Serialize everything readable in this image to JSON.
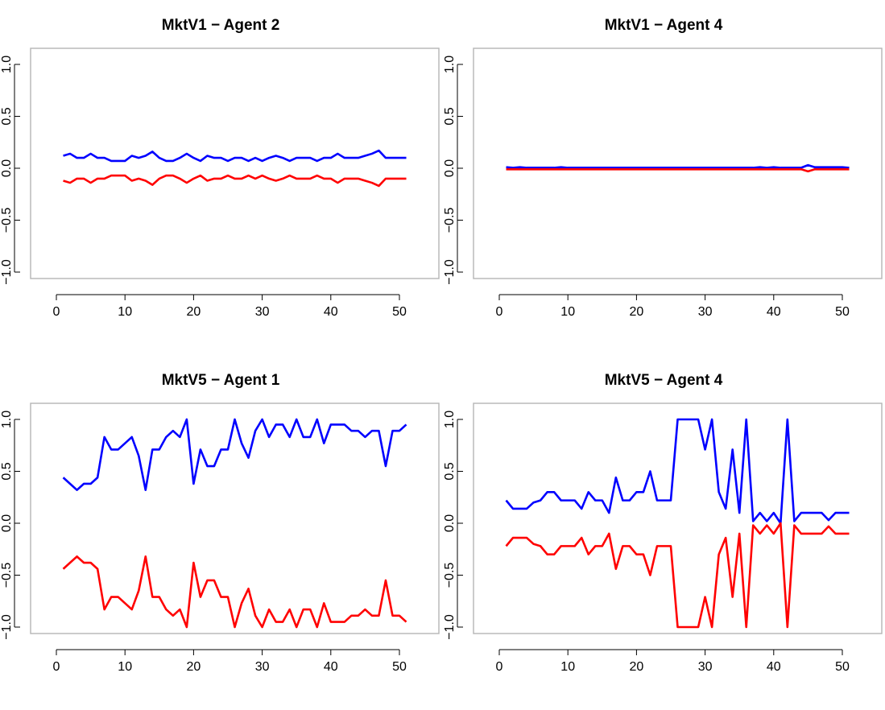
{
  "chart_data": [
    {
      "type": "line",
      "title": "MktV1 − Agent 2",
      "xlim": [
        1,
        51
      ],
      "ylim": [
        -1,
        1
      ],
      "xticks": [
        "0",
        "10",
        "20",
        "30",
        "40",
        "50"
      ],
      "yticks": [
        "−1.0",
        "−0.5",
        "0.0",
        "0.5",
        "1.0"
      ],
      "colors": {
        "positive": "#0000ff",
        "negative": "#ff0000"
      },
      "series": [
        {
          "color": "#0000ff",
          "values": [
            0.12,
            0.14,
            0.1,
            0.1,
            0.14,
            0.1,
            0.1,
            0.07,
            0.07,
            0.07,
            0.12,
            0.1,
            0.12,
            0.16,
            0.1,
            0.07,
            0.07,
            0.1,
            0.14,
            0.1,
            0.07,
            0.12,
            0.1,
            0.1,
            0.07,
            0.1,
            0.1,
            0.07,
            0.1,
            0.07,
            0.1,
            0.12,
            0.1,
            0.07,
            0.1,
            0.1,
            0.1,
            0.07,
            0.1,
            0.1,
            0.14,
            0.1,
            0.1,
            0.1,
            0.12,
            0.14,
            0.17,
            0.1,
            0.1,
            0.1,
            0.1
          ]
        },
        {
          "color": "#ff0000",
          "values": [
            -0.12,
            -0.14,
            -0.1,
            -0.1,
            -0.14,
            -0.1,
            -0.1,
            -0.07,
            -0.07,
            -0.07,
            -0.12,
            -0.1,
            -0.12,
            -0.16,
            -0.1,
            -0.07,
            -0.07,
            -0.1,
            -0.14,
            -0.1,
            -0.07,
            -0.12,
            -0.1,
            -0.1,
            -0.07,
            -0.1,
            -0.1,
            -0.07,
            -0.1,
            -0.07,
            -0.1,
            -0.12,
            -0.1,
            -0.07,
            -0.1,
            -0.1,
            -0.1,
            -0.07,
            -0.1,
            -0.1,
            -0.14,
            -0.1,
            -0.1,
            -0.1,
            -0.12,
            -0.14,
            -0.17,
            -0.1,
            -0.1,
            -0.1,
            -0.1
          ]
        }
      ]
    },
    {
      "type": "line",
      "title": "MktV1 − Agent 4",
      "xlim": [
        1,
        51
      ],
      "ylim": [
        -1,
        1
      ],
      "xticks": [
        "0",
        "10",
        "20",
        "30",
        "40",
        "50"
      ],
      "yticks": [
        "−1.0",
        "−0.5",
        "0.0",
        "0.5",
        "1.0"
      ],
      "colors": {
        "positive": "#0000ff",
        "negative": "#ff0000"
      },
      "series": [
        {
          "color": "#0000ff",
          "values": [
            0.01,
            0.005,
            0.01,
            0.005,
            0.005,
            0.005,
            0.005,
            0.005,
            0.01,
            0.005,
            0.005,
            0.005,
            0.005,
            0.005,
            0.005,
            0.005,
            0.005,
            0.005,
            0.005,
            0.005,
            0.005,
            0.005,
            0.005,
            0.005,
            0.005,
            0.005,
            0.005,
            0.005,
            0.005,
            0.005,
            0.005,
            0.005,
            0.005,
            0.005,
            0.005,
            0.005,
            0.005,
            0.01,
            0.005,
            0.01,
            0.005,
            0.005,
            0.005,
            0.005,
            0.03,
            0.01,
            0.01,
            0.01,
            0.01,
            0.01,
            0.005
          ]
        },
        {
          "color": "#ff0000",
          "values": [
            -0.01,
            -0.01,
            -0.01,
            -0.01,
            -0.01,
            -0.01,
            -0.01,
            -0.01,
            -0.01,
            -0.01,
            -0.01,
            -0.01,
            -0.01,
            -0.01,
            -0.01,
            -0.01,
            -0.01,
            -0.01,
            -0.01,
            -0.01,
            -0.01,
            -0.01,
            -0.01,
            -0.01,
            -0.01,
            -0.01,
            -0.01,
            -0.01,
            -0.01,
            -0.01,
            -0.01,
            -0.01,
            -0.01,
            -0.01,
            -0.01,
            -0.01,
            -0.01,
            -0.01,
            -0.01,
            -0.01,
            -0.01,
            -0.01,
            -0.01,
            -0.01,
            -0.03,
            -0.01,
            -0.01,
            -0.01,
            -0.01,
            -0.01,
            -0.01
          ]
        }
      ]
    },
    {
      "type": "line",
      "title": "MktV5 − Agent 1",
      "xlim": [
        1,
        51
      ],
      "ylim": [
        -1,
        1
      ],
      "xticks": [
        "0",
        "10",
        "20",
        "30",
        "40",
        "50"
      ],
      "yticks": [
        "−1.0",
        "−0.5",
        "0.0",
        "0.5",
        "1.0"
      ],
      "colors": {
        "positive": "#0000ff",
        "negative": "#ff0000"
      },
      "series": [
        {
          "color": "#0000ff",
          "values": [
            0.44,
            0.38,
            0.32,
            0.38,
            0.38,
            0.44,
            0.83,
            0.71,
            0.71,
            0.77,
            0.83,
            0.65,
            0.32,
            0.71,
            0.71,
            0.83,
            0.89,
            0.83,
            1.0,
            0.38,
            0.71,
            0.55,
            0.55,
            0.71,
            0.71,
            1.0,
            0.77,
            0.63,
            0.89,
            1.0,
            0.83,
            0.95,
            0.95,
            0.83,
            1.0,
            0.83,
            0.83,
            1.0,
            0.77,
            0.95,
            0.95,
            0.95,
            0.89,
            0.89,
            0.83,
            0.89,
            0.89,
            0.55,
            0.89,
            0.89,
            0.95
          ]
        },
        {
          "color": "#ff0000",
          "values": [
            -0.44,
            -0.38,
            -0.32,
            -0.38,
            -0.38,
            -0.44,
            -0.83,
            -0.71,
            -0.71,
            -0.77,
            -0.83,
            -0.65,
            -0.32,
            -0.71,
            -0.71,
            -0.83,
            -0.89,
            -0.83,
            -1.0,
            -0.38,
            -0.71,
            -0.55,
            -0.55,
            -0.71,
            -0.71,
            -1.0,
            -0.77,
            -0.63,
            -0.89,
            -1.0,
            -0.83,
            -0.95,
            -0.95,
            -0.83,
            -1.0,
            -0.83,
            -0.83,
            -1.0,
            -0.77,
            -0.95,
            -0.95,
            -0.95,
            -0.89,
            -0.89,
            -0.83,
            -0.89,
            -0.89,
            -0.55,
            -0.89,
            -0.89,
            -0.95
          ]
        }
      ]
    },
    {
      "type": "line",
      "title": "MktV5 − Agent 4",
      "xlim": [
        1,
        51
      ],
      "ylim": [
        -1,
        1
      ],
      "xticks": [
        "0",
        "10",
        "20",
        "30",
        "40",
        "50"
      ],
      "yticks": [
        "−1.0",
        "−0.5",
        "0.0",
        "0.5",
        "1.0"
      ],
      "colors": {
        "positive": "#0000ff",
        "negative": "#ff0000"
      },
      "series": [
        {
          "color": "#0000ff",
          "values": [
            0.22,
            0.14,
            0.14,
            0.14,
            0.2,
            0.22,
            0.3,
            0.3,
            0.22,
            0.22,
            0.22,
            0.14,
            0.3,
            0.22,
            0.22,
            0.1,
            0.44,
            0.22,
            0.22,
            0.3,
            0.3,
            0.5,
            0.22,
            0.22,
            0.22,
            1.0,
            1.0,
            1.0,
            1.0,
            0.71,
            1.0,
            0.3,
            0.14,
            0.71,
            0.1,
            1.0,
            0.02,
            0.1,
            0.02,
            0.1,
            0.0,
            1.0,
            0.02,
            0.1,
            0.1,
            0.1,
            0.1,
            0.03,
            0.1,
            0.1,
            0.1
          ]
        },
        {
          "color": "#ff0000",
          "values": [
            -0.22,
            -0.14,
            -0.14,
            -0.14,
            -0.2,
            -0.22,
            -0.3,
            -0.3,
            -0.22,
            -0.22,
            -0.22,
            -0.14,
            -0.3,
            -0.22,
            -0.22,
            -0.1,
            -0.44,
            -0.22,
            -0.22,
            -0.3,
            -0.3,
            -0.5,
            -0.22,
            -0.22,
            -0.22,
            -1.0,
            -1.0,
            -1.0,
            -1.0,
            -0.71,
            -1.0,
            -0.3,
            -0.14,
            -0.71,
            -0.1,
            -1.0,
            -0.02,
            -0.1,
            -0.02,
            -0.1,
            0.0,
            -1.0,
            -0.02,
            -0.1,
            -0.1,
            -0.1,
            -0.1,
            -0.03,
            -0.1,
            -0.1,
            -0.1
          ]
        }
      ]
    }
  ]
}
